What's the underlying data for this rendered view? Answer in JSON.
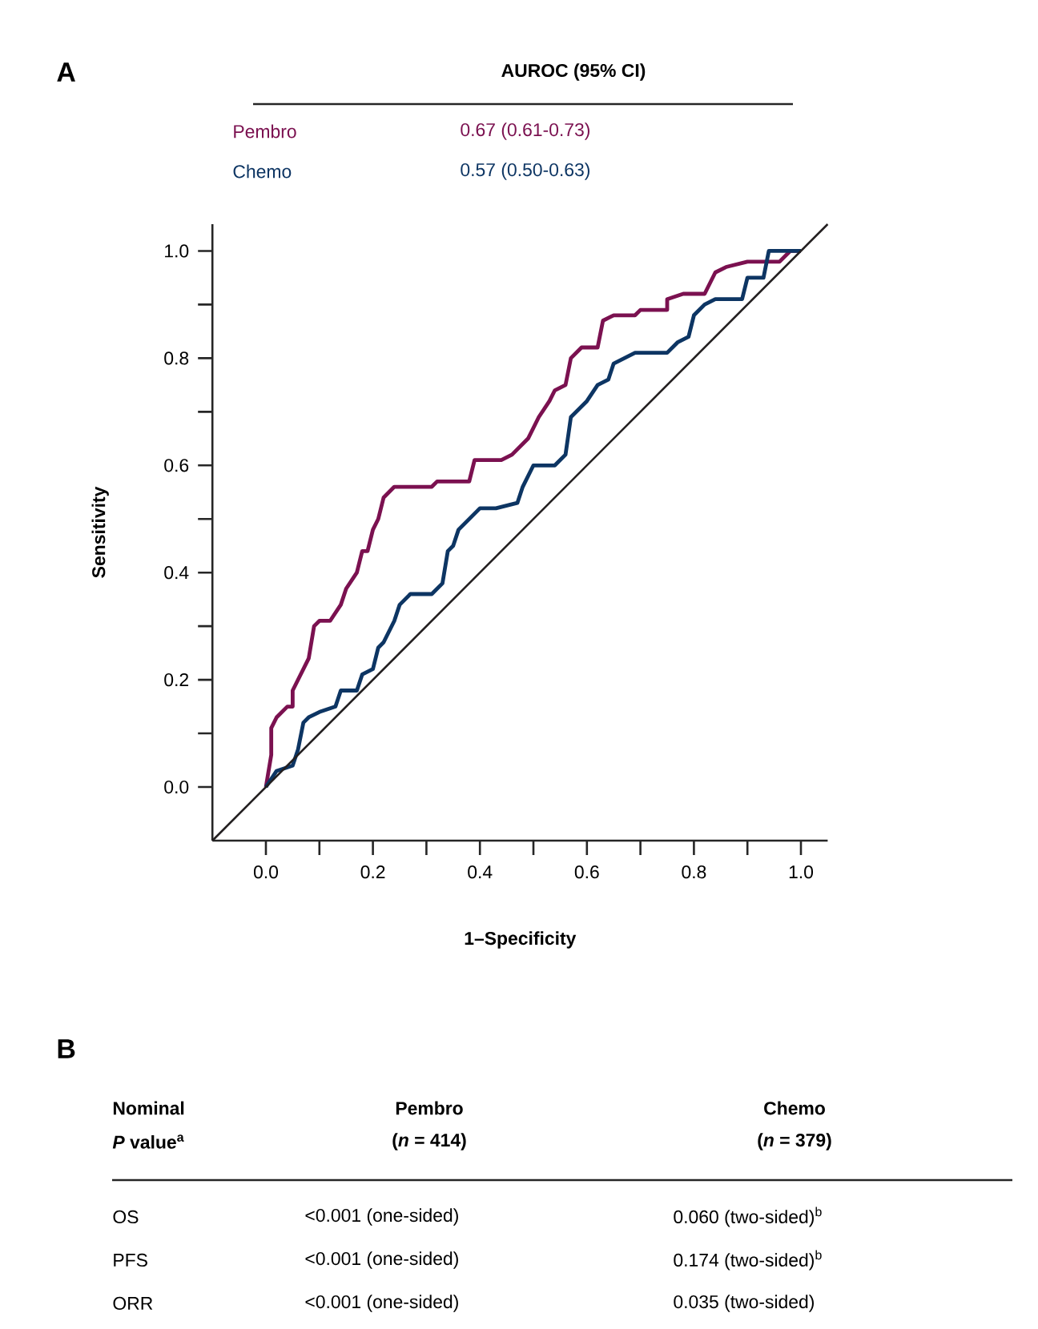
{
  "chart_data": [
    {
      "type": "line",
      "title": "A",
      "legend_title": "AUROC (95% CI)",
      "xlabel": "1–Specificity",
      "ylabel": "Sensitivity",
      "xlim": [
        -0.1,
        1.05
      ],
      "ylim": [
        -0.1,
        1.05
      ],
      "xticks": [
        {
          "value": 0,
          "label": "0.0"
        },
        {
          "value": 0.1,
          "label": null
        },
        {
          "value": 0.2,
          "label": "0.2"
        },
        {
          "value": 0.3,
          "label": null
        },
        {
          "value": 0.4,
          "label": "0.4"
        },
        {
          "value": 0.5,
          "label": null
        },
        {
          "value": 0.6,
          "label": "0.6"
        },
        {
          "value": 0.7,
          "label": null
        },
        {
          "value": 0.8,
          "label": "0.8"
        },
        {
          "value": 0.9,
          "label": null
        },
        {
          "value": 1,
          "label": "1.0"
        }
      ],
      "yticks": [
        {
          "value": 0,
          "label": "0.0"
        },
        {
          "value": 0.1,
          "label": null
        },
        {
          "value": 0.2,
          "label": "0.2"
        },
        {
          "value": 0.3,
          "label": null
        },
        {
          "value": 0.4,
          "label": "0.4"
        },
        {
          "value": 0.5,
          "label": null
        },
        {
          "value": 0.6,
          "label": "0.6"
        },
        {
          "value": 0.7,
          "label": null
        },
        {
          "value": 0.8,
          "label": "0.8"
        },
        {
          "value": 0.9,
          "label": null
        },
        {
          "value": 1,
          "label": "1.0"
        }
      ],
      "legend": "top",
      "annotations": [
        "0.67 (0.61-0.73)",
        "0.57 (0.50-0.63)"
      ],
      "series": [
        {
          "name": "Pembro",
          "color": "#7b1150",
          "x": [
            0,
            0.01,
            0.01,
            0.02,
            0.04,
            0.05,
            0.05,
            0.07,
            0.08,
            0.09,
            0.1,
            0.12,
            0.14,
            0.15,
            0.17,
            0.18,
            0.19,
            0.2,
            0.21,
            0.22,
            0.24,
            0.31,
            0.32,
            0.38,
            0.39,
            0.44,
            0.46,
            0.48,
            0.49,
            0.51,
            0.53,
            0.54,
            0.56,
            0.57,
            0.59,
            0.62,
            0.63,
            0.65,
            0.69,
            0.7,
            0.75,
            0.75,
            0.78,
            0.82,
            0.84,
            0.86,
            0.9,
            0.96,
            0.98,
            1.0
          ],
          "values": [
            0,
            0.06,
            0.11,
            0.13,
            0.15,
            0.15,
            0.18,
            0.22,
            0.24,
            0.3,
            0.31,
            0.31,
            0.34,
            0.37,
            0.4,
            0.44,
            0.44,
            0.48,
            0.5,
            0.54,
            0.56,
            0.56,
            0.57,
            0.57,
            0.61,
            0.61,
            0.62,
            0.64,
            0.65,
            0.69,
            0.72,
            0.74,
            0.75,
            0.8,
            0.82,
            0.82,
            0.87,
            0.88,
            0.88,
            0.89,
            0.89,
            0.91,
            0.92,
            0.92,
            0.96,
            0.97,
            0.98,
            0.98,
            1.0,
            1.0
          ]
        },
        {
          "name": "Chemo",
          "color": "#0d3563",
          "x": [
            0,
            0.02,
            0.05,
            0.06,
            0.07,
            0.08,
            0.1,
            0.13,
            0.14,
            0.17,
            0.18,
            0.2,
            0.21,
            0.22,
            0.24,
            0.25,
            0.27,
            0.31,
            0.33,
            0.34,
            0.35,
            0.36,
            0.38,
            0.4,
            0.43,
            0.47,
            0.48,
            0.5,
            0.54,
            0.56,
            0.57,
            0.6,
            0.62,
            0.64,
            0.65,
            0.69,
            0.75,
            0.77,
            0.79,
            0.8,
            0.82,
            0.84,
            0.89,
            0.9,
            0.93,
            0.94,
            1.0
          ],
          "values": [
            0,
            0.03,
            0.04,
            0.07,
            0.12,
            0.13,
            0.14,
            0.15,
            0.18,
            0.18,
            0.21,
            0.22,
            0.26,
            0.27,
            0.31,
            0.34,
            0.36,
            0.36,
            0.38,
            0.44,
            0.45,
            0.48,
            0.5,
            0.52,
            0.52,
            0.53,
            0.56,
            0.6,
            0.6,
            0.62,
            0.69,
            0.72,
            0.75,
            0.76,
            0.79,
            0.81,
            0.81,
            0.83,
            0.84,
            0.88,
            0.9,
            0.91,
            0.91,
            0.95,
            0.95,
            1.0,
            1.0
          ]
        },
        {
          "color": "#231f20",
          "x": [
            -0.1,
            1.05
          ],
          "values": [
            -0.1,
            1.05
          ]
        }
      ]
    },
    {
      "type": "other",
      "title": "B",
      "annotations": [
        "Nominal",
        "*P* value$^{a}$",
        "Pembro",
        "(*n* = 414)",
        "Chemo",
        "(*n* = 379)",
        "OS",
        "<0.001 (one-sided)",
        "0.060 (two-sided)$^{b}$",
        "PFS",
        "<0.001 (one-sided)",
        "0.174 (two-sided)$^{b}$",
        "ORR",
        "<0.001 (one-sided)",
        "0.035 (two-sided)"
      ]
    }
  ]
}
